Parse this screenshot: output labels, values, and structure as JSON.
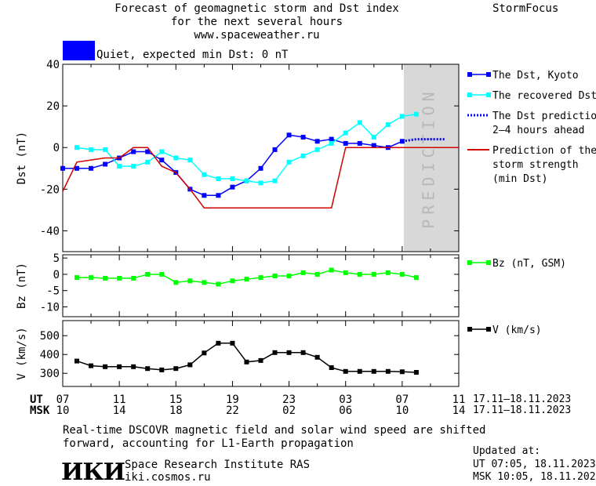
{
  "header": {
    "title_line1": "Forecast of geomagnetic storm and Dst index",
    "title_line2": "for the next several hours",
    "website": "www.spaceweather.ru",
    "brand": "StormFocus"
  },
  "status": {
    "color": "#0000ff",
    "text": "Quiet, expected min Dst: 0 nT"
  },
  "time_axis": {
    "ut_label": "UT",
    "msk_label": "MSK",
    "ut_ticks": [
      "07",
      "11",
      "15",
      "19",
      "23",
      "03",
      "07",
      "11"
    ],
    "msk_ticks": [
      "10",
      "14",
      "18",
      "22",
      "02",
      "06",
      "10",
      "14"
    ],
    "date_range_ut": "17.11–18.11.2023",
    "date_range_msk": "17.11–18.11.2023"
  },
  "footer": {
    "note_line1": "Real-time DSCOVR magnetic field and solar wind speed are shifted",
    "note_line2": "forward, accounting for L1-Earth propagation",
    "logo_text": "ИКИ",
    "institute": "Space Research Institute RAS",
    "url": "iki.cosmos.ru",
    "updated_label": "Updated at:",
    "updated_ut": "UT   07:05, 18.11.2023",
    "updated_msk": "MSK 10:05, 18.11.2023"
  },
  "chart_data": [
    {
      "type": "line",
      "ylabel": "Dst (nT)",
      "ylim": [
        -50,
        40
      ],
      "yticks": [
        40,
        20,
        0,
        -20,
        -40
      ],
      "xlim": [
        0,
        28
      ],
      "prediction_label": "PREDICTION",
      "prediction_region": [
        24.5,
        28
      ],
      "series": [
        {
          "name": "The Dst, Kyoto",
          "color": "#0000ff",
          "marker": "square",
          "x": [
            0,
            1,
            2,
            3,
            4,
            5,
            6,
            7,
            8,
            9,
            10,
            11,
            12,
            13,
            14,
            15,
            16,
            17,
            18,
            19,
            20,
            21,
            22,
            23,
            24
          ],
          "y": [
            -10,
            -10,
            -10,
            -8,
            -5,
            -2,
            -2,
            -6,
            -12,
            -20,
            -23,
            -23,
            -19,
            -16,
            -10,
            -1,
            6,
            5,
            3,
            4,
            2,
            2,
            1,
            0,
            3
          ]
        },
        {
          "name": "The recovered Dst",
          "color": "#00ffff",
          "marker": "square",
          "x": [
            1,
            2,
            3,
            4,
            5,
            6,
            7,
            8,
            9,
            10,
            11,
            12,
            13,
            14,
            15,
            16,
            17,
            18,
            19,
            20,
            21,
            22,
            23,
            24,
            25
          ],
          "y": [
            0,
            -1,
            -1,
            -9,
            -9,
            -7,
            -2,
            -5,
            -6,
            -13,
            -15,
            -15,
            -16,
            -17,
            -16,
            -7,
            -4,
            -1,
            2,
            7,
            12,
            5,
            11,
            15,
            16
          ]
        },
        {
          "name": "The Dst prediction 2–4 hours ahead",
          "color": "#0000ff",
          "style": "dotted",
          "x": [
            24,
            24.5,
            25,
            25.5,
            26,
            26.5,
            27
          ],
          "y": [
            3,
            3.5,
            4,
            4,
            4,
            4,
            4
          ]
        },
        {
          "name": "Prediction of the storm strength (min Dst)",
          "color": "#d00000",
          "style": "solid",
          "x": [
            0,
            1,
            2,
            3,
            4,
            5,
            6,
            7,
            8,
            9,
            10,
            11,
            12,
            13,
            14,
            15,
            16,
            17,
            18,
            19,
            20,
            21,
            22,
            23,
            24,
            25,
            26,
            27,
            28
          ],
          "y": [
            -21,
            -7,
            -6,
            -5,
            -5,
            0,
            0,
            -9,
            -12,
            -20,
            -29,
            -29,
            -29,
            -29,
            -29,
            -29,
            -29,
            -29,
            -29,
            -29,
            0,
            0,
            0,
            0,
            0,
            0,
            0,
            0,
            0
          ]
        }
      ],
      "legend": [
        {
          "label_lines": [
            "The Dst, Kyoto"
          ],
          "color": "#0000ff",
          "style": "marker-line"
        },
        {
          "label_lines": [
            "The recovered Dst"
          ],
          "color": "#00ffff",
          "style": "marker-line"
        },
        {
          "label_lines": [
            "The Dst prediction",
            "2–4 hours ahead"
          ],
          "color": "#0000ff",
          "style": "dotted"
        },
        {
          "label_lines": [
            "Prediction of the",
            "storm strength",
            "(min Dst)"
          ],
          "color": "#d00000",
          "style": "solid"
        }
      ]
    },
    {
      "type": "line",
      "ylabel": "Bz (nT)",
      "ylim": [
        -13,
        6
      ],
      "yticks": [
        5,
        0,
        -5,
        -10
      ],
      "xlim": [
        0,
        28
      ],
      "series": [
        {
          "name": "Bz (nT, GSM)",
          "color": "#00ff00",
          "marker": "square",
          "x": [
            1,
            2,
            3,
            4,
            5,
            6,
            7,
            8,
            9,
            10,
            11,
            12,
            13,
            14,
            15,
            16,
            17,
            18,
            19,
            20,
            21,
            22,
            23,
            24,
            25
          ],
          "y": [
            -1,
            -1,
            -1.2,
            -1.2,
            -1.2,
            0,
            0,
            -2.5,
            -2,
            -2.5,
            -3,
            -2,
            -1.5,
            -1,
            -0.5,
            -0.5,
            0.5,
            0,
            1.3,
            0.5,
            0,
            0,
            0.5,
            0,
            -1
          ]
        }
      ],
      "legend": [
        {
          "label_lines": [
            "Bz (nT, GSM)"
          ],
          "color": "#00ff00",
          "style": "marker-line"
        }
      ]
    },
    {
      "type": "line",
      "ylabel": "V (km/s)",
      "ylim": [
        230,
        580
      ],
      "yticks": [
        500,
        400,
        300
      ],
      "xlim": [
        0,
        28
      ],
      "series": [
        {
          "name": "V (km/s)",
          "color": "#000000",
          "marker": "square",
          "x": [
            1,
            2,
            3,
            4,
            5,
            6,
            7,
            8,
            9,
            10,
            11,
            12,
            13,
            14,
            15,
            16,
            17,
            18,
            19,
            20,
            21,
            22,
            23,
            24,
            25
          ],
          "y": [
            365,
            340,
            335,
            335,
            335,
            325,
            318,
            325,
            345,
            408,
            460,
            460,
            360,
            368,
            410,
            410,
            410,
            385,
            330,
            310,
            310,
            310,
            310,
            308,
            305
          ]
        }
      ],
      "legend": [
        {
          "label_lines": [
            "V (km/s)"
          ],
          "color": "#000000",
          "style": "marker-line"
        }
      ]
    }
  ]
}
